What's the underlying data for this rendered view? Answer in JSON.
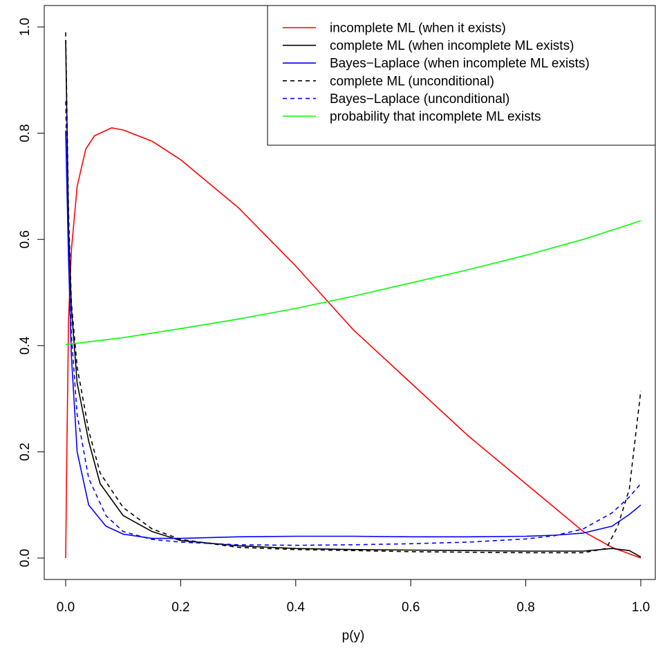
{
  "chart_data": {
    "type": "line",
    "title": "",
    "xlabel": "p(y)",
    "ylabel": "",
    "xlim": [
      0.0,
      1.0
    ],
    "ylim": [
      0.0,
      1.0
    ],
    "x_ticks": [
      "0.0",
      "0.2",
      "0.4",
      "0.6",
      "0.8",
      "1.0"
    ],
    "y_ticks": [
      "0.0",
      "0.2",
      "0.4",
      "0.6",
      "0.8",
      "1.0"
    ],
    "grid": false,
    "legend_position": "top-right",
    "series": [
      {
        "name": "incomplete ML (when it exists)",
        "color": "#ff0000",
        "dash": "solid",
        "points": [
          [
            0.0,
            0.0
          ],
          [
            0.002,
            0.2
          ],
          [
            0.005,
            0.45
          ],
          [
            0.01,
            0.58
          ],
          [
            0.02,
            0.7
          ],
          [
            0.035,
            0.77
          ],
          [
            0.05,
            0.795
          ],
          [
            0.08,
            0.81
          ],
          [
            0.1,
            0.806
          ],
          [
            0.15,
            0.785
          ],
          [
            0.2,
            0.75
          ],
          [
            0.3,
            0.66
          ],
          [
            0.4,
            0.55
          ],
          [
            0.5,
            0.43
          ],
          [
            0.6,
            0.33
          ],
          [
            0.7,
            0.23
          ],
          [
            0.8,
            0.14
          ],
          [
            0.9,
            0.05
          ],
          [
            0.95,
            0.02
          ],
          [
            1.0,
            0.0
          ]
        ]
      },
      {
        "name": "complete ML (when incomplete ML exists)",
        "color": "#000000",
        "dash": "solid",
        "points": [
          [
            0.0,
            0.975
          ],
          [
            0.005,
            0.62
          ],
          [
            0.01,
            0.47
          ],
          [
            0.02,
            0.33
          ],
          [
            0.04,
            0.22
          ],
          [
            0.06,
            0.14
          ],
          [
            0.1,
            0.08
          ],
          [
            0.15,
            0.05
          ],
          [
            0.2,
            0.033
          ],
          [
            0.3,
            0.023
          ],
          [
            0.4,
            0.018
          ],
          [
            0.5,
            0.016
          ],
          [
            0.6,
            0.015
          ],
          [
            0.7,
            0.014
          ],
          [
            0.8,
            0.013
          ],
          [
            0.9,
            0.013
          ],
          [
            0.95,
            0.018
          ],
          [
            0.98,
            0.014
          ],
          [
            1.0,
            0.002
          ]
        ]
      },
      {
        "name": "Bayes−Laplace (when incomplete ML exists)",
        "color": "#0000ff",
        "dash": "solid",
        "points": [
          [
            0.0,
            0.805
          ],
          [
            0.005,
            0.56
          ],
          [
            0.01,
            0.38
          ],
          [
            0.02,
            0.2
          ],
          [
            0.04,
            0.1
          ],
          [
            0.07,
            0.06
          ],
          [
            0.1,
            0.045
          ],
          [
            0.15,
            0.037
          ],
          [
            0.2,
            0.037
          ],
          [
            0.3,
            0.04
          ],
          [
            0.4,
            0.041
          ],
          [
            0.5,
            0.041
          ],
          [
            0.6,
            0.04
          ],
          [
            0.7,
            0.04
          ],
          [
            0.8,
            0.041
          ],
          [
            0.85,
            0.043
          ],
          [
            0.9,
            0.047
          ],
          [
            0.95,
            0.06
          ],
          [
            0.98,
            0.082
          ],
          [
            1.0,
            0.1
          ]
        ]
      },
      {
        "name": "complete ML (unconditional)",
        "color": "#000000",
        "dash": "dashed",
        "points": [
          [
            0.0,
            0.99
          ],
          [
            0.005,
            0.65
          ],
          [
            0.01,
            0.48
          ],
          [
            0.02,
            0.36
          ],
          [
            0.04,
            0.24
          ],
          [
            0.06,
            0.16
          ],
          [
            0.1,
            0.095
          ],
          [
            0.15,
            0.055
          ],
          [
            0.2,
            0.035
          ],
          [
            0.3,
            0.02
          ],
          [
            0.4,
            0.016
          ],
          [
            0.5,
            0.014
          ],
          [
            0.6,
            0.012
          ],
          [
            0.7,
            0.011
          ],
          [
            0.8,
            0.01
          ],
          [
            0.9,
            0.01
          ],
          [
            0.94,
            0.018
          ],
          [
            0.96,
            0.06
          ],
          [
            0.98,
            0.13
          ],
          [
            1.0,
            0.315
          ]
        ]
      },
      {
        "name": "Bayes−Laplace (unconditional)",
        "color": "#0000ff",
        "dash": "dashed",
        "points": [
          [
            0.0,
            0.86
          ],
          [
            0.005,
            0.58
          ],
          [
            0.01,
            0.42
          ],
          [
            0.02,
            0.27
          ],
          [
            0.04,
            0.15
          ],
          [
            0.07,
            0.08
          ],
          [
            0.1,
            0.05
          ],
          [
            0.15,
            0.035
          ],
          [
            0.2,
            0.03
          ],
          [
            0.3,
            0.025
          ],
          [
            0.4,
            0.024
          ],
          [
            0.5,
            0.025
          ],
          [
            0.6,
            0.027
          ],
          [
            0.7,
            0.03
          ],
          [
            0.8,
            0.036
          ],
          [
            0.85,
            0.042
          ],
          [
            0.9,
            0.055
          ],
          [
            0.95,
            0.085
          ],
          [
            0.98,
            0.115
          ],
          [
            1.0,
            0.14
          ]
        ]
      },
      {
        "name": "probability that incomplete ML exists",
        "color": "#00ff00",
        "dash": "solid",
        "points": [
          [
            0.0,
            0.402
          ],
          [
            0.1,
            0.415
          ],
          [
            0.2,
            0.432
          ],
          [
            0.3,
            0.45
          ],
          [
            0.4,
            0.47
          ],
          [
            0.5,
            0.493
          ],
          [
            0.6,
            0.518
          ],
          [
            0.7,
            0.543
          ],
          [
            0.8,
            0.57
          ],
          [
            0.9,
            0.6
          ],
          [
            1.0,
            0.635
          ]
        ]
      }
    ]
  }
}
